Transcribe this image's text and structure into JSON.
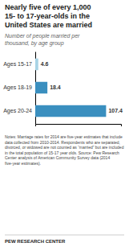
{
  "chart_data": {
    "type": "bar",
    "title": "Nearly five of every 1,000\n15- to 17-year-olds in the\nUnited States are married",
    "subtitle": "Number of people married per\nthousand, by age group",
    "categories": [
      "Ages 15-17",
      "Ages 18-19",
      "Ages 20-24"
    ],
    "values": [
      4.6,
      18.4,
      107.4
    ],
    "colors": [
      "#a8d4e6",
      "#3a8fbf",
      "#3a8fbf"
    ],
    "orientation": "horizontal",
    "xlim": [
      0,
      130
    ],
    "data_labels": true,
    "tick_labels": "y",
    "notes": "Notes: Marriage rates for 2014 are five-year estimates that include data collected from 2010-2014.  Respondents who are separated, divorced, or widowed are not counted as “married” but are included in the total population of 15-17 year olds. Source: Pew Research Center analysis of American Community Survey data (2014 five-year estimates).",
    "source": "PEW RESEARCH CENTER"
  }
}
